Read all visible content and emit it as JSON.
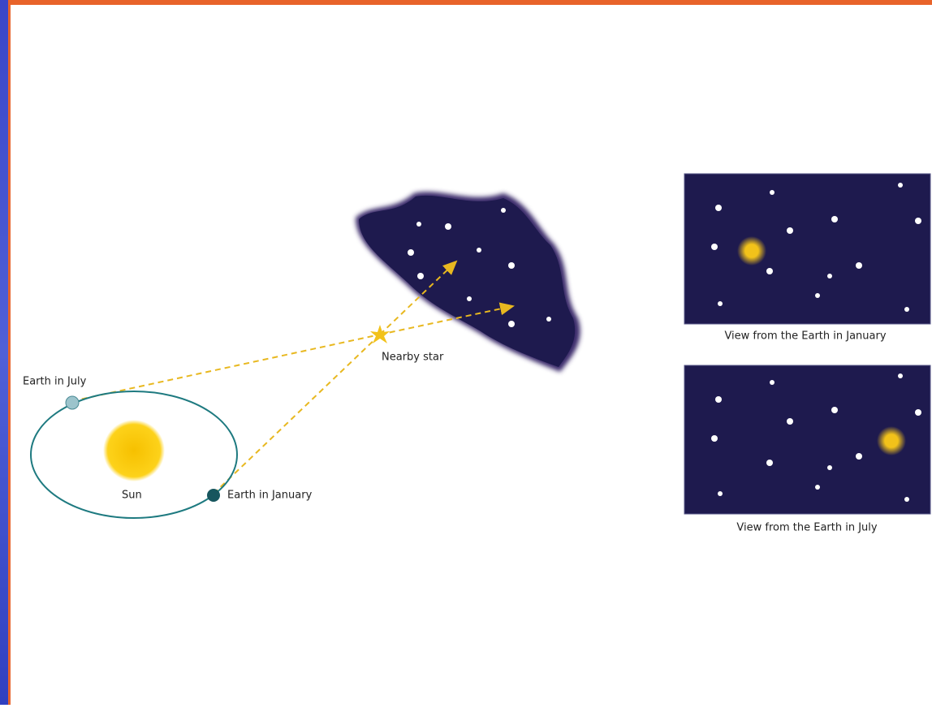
{
  "labels": {
    "earth_july": "Earth in July",
    "earth_january": "Earth in January",
    "sun": "Sun",
    "nearby_star": "Nearby star"
  },
  "panels": [
    {
      "caption": "View from the Earth in January"
    },
    {
      "caption": "View from the Earth in July"
    }
  ]
}
